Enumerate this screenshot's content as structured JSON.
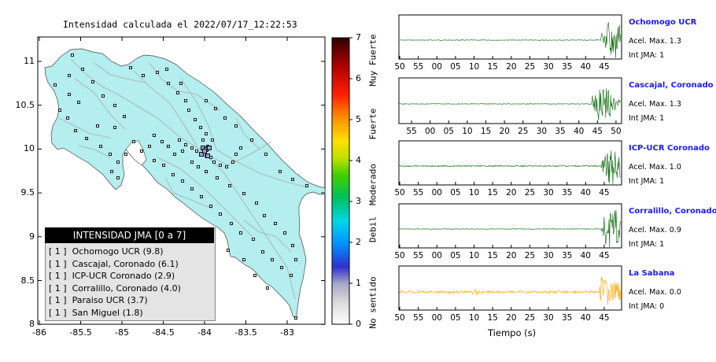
{
  "map": {
    "title": "Intensidad calculada el 2022/07/17_12:22:53",
    "lon_ticks": [
      "-86",
      "-85.5",
      "-85",
      "-84.5",
      "-84",
      "-83.5",
      "-83"
    ],
    "lat_ticks": [
      "11",
      "10.5",
      "10",
      "9.5",
      "9",
      "8.5",
      "8"
    ],
    "land_color": "#b4eeee"
  },
  "colorbar": {
    "ticks": [
      "7",
      "6",
      "5",
      "4",
      "3",
      "2",
      "1",
      "0"
    ],
    "labels": [
      "Muy Fuerte",
      "Fuerte",
      "Moderado",
      "Debil",
      "No sentido"
    ]
  },
  "legend": {
    "title": "INTENSIDAD JMA [0 a 7]",
    "items": [
      "[ 1 ]  Ochomogo UCR (9.8)",
      "[ 1 ]  Cascajal, Coronado (6.1)",
      "[ 1 ]  ICP-UCR Coronado (2.9)",
      "[ 1 ]  Corralillo, Coronado (4.0)",
      "[ 1 ]  Paraiso UCR (3.7)",
      "[ 1 ]  San Miguel (1.8)"
    ]
  },
  "seismograms": [
    {
      "name": "Ochomogo UCR",
      "accel": "Acel. Max. 1.3",
      "jma": "Int JMA: 1",
      "color": "#006400",
      "ticks": [
        "50",
        "55",
        "00",
        "05",
        "10",
        "15",
        "20",
        "25",
        "30",
        "35",
        "40",
        "45"
      ]
    },
    {
      "name": "Cascajal, Coronado",
      "accel": "Acel. Max. 1.3",
      "jma": "Int JMA: 1",
      "color": "#006400",
      "ticks": [
        "55",
        "00",
        "05",
        "10",
        "15",
        "20",
        "25",
        "30",
        "35",
        "40",
        "45",
        "50"
      ]
    },
    {
      "name": "ICP-UCR Coronado",
      "accel": "Acel. Max. 1.0",
      "jma": "Int JMA: 1",
      "color": "#006400",
      "ticks": [
        "50",
        "55",
        "00",
        "05",
        "10",
        "15",
        "20",
        "25",
        "30",
        "35",
        "40",
        "45"
      ]
    },
    {
      "name": "Corralillo, Coronado",
      "accel": "Acel. Max. 0.9",
      "jma": "Int JMA: 1",
      "color": "#006400",
      "ticks": [
        "50",
        "55",
        "00",
        "05",
        "10",
        "15",
        "20",
        "25",
        "30",
        "35",
        "40",
        "45"
      ]
    },
    {
      "name": "La Sabana",
      "accel": "Acel. Max. 0.0",
      "jma": "Int JMA: 0",
      "color": "#ffa500",
      "ticks": [
        "50",
        "55",
        "00",
        "05",
        "10",
        "15",
        "20",
        "25",
        "30",
        "35",
        "40",
        "45"
      ]
    }
  ],
  "xlabel": "Tiempo (s)"
}
